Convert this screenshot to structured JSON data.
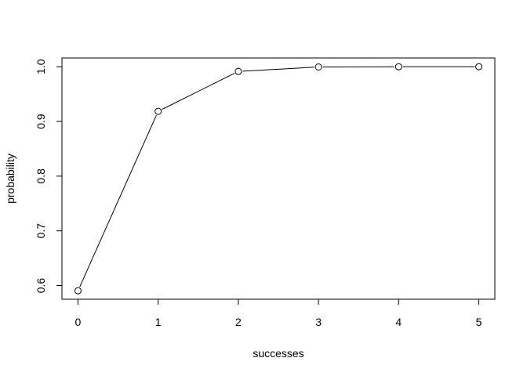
{
  "chart_data": {
    "type": "line",
    "title": "",
    "xlabel": "successes",
    "ylabel": "probability",
    "x": [
      0,
      1,
      2,
      3,
      4,
      5
    ],
    "series": [
      {
        "values": [
          0.5905,
          0.91854,
          0.99144,
          0.99954,
          0.99999,
          1.0
        ]
      }
    ],
    "xlim": [
      -0.2,
      5.2
    ],
    "ylim": [
      0.575,
      1.016
    ],
    "xticks": [
      "0",
      "1",
      "2",
      "3",
      "4",
      "5"
    ],
    "yticks": [
      "0.6",
      "0.7",
      "0.8",
      "0.9",
      "1.0"
    ],
    "marker": "open-circle",
    "grid": false,
    "line_color": "#000000"
  }
}
